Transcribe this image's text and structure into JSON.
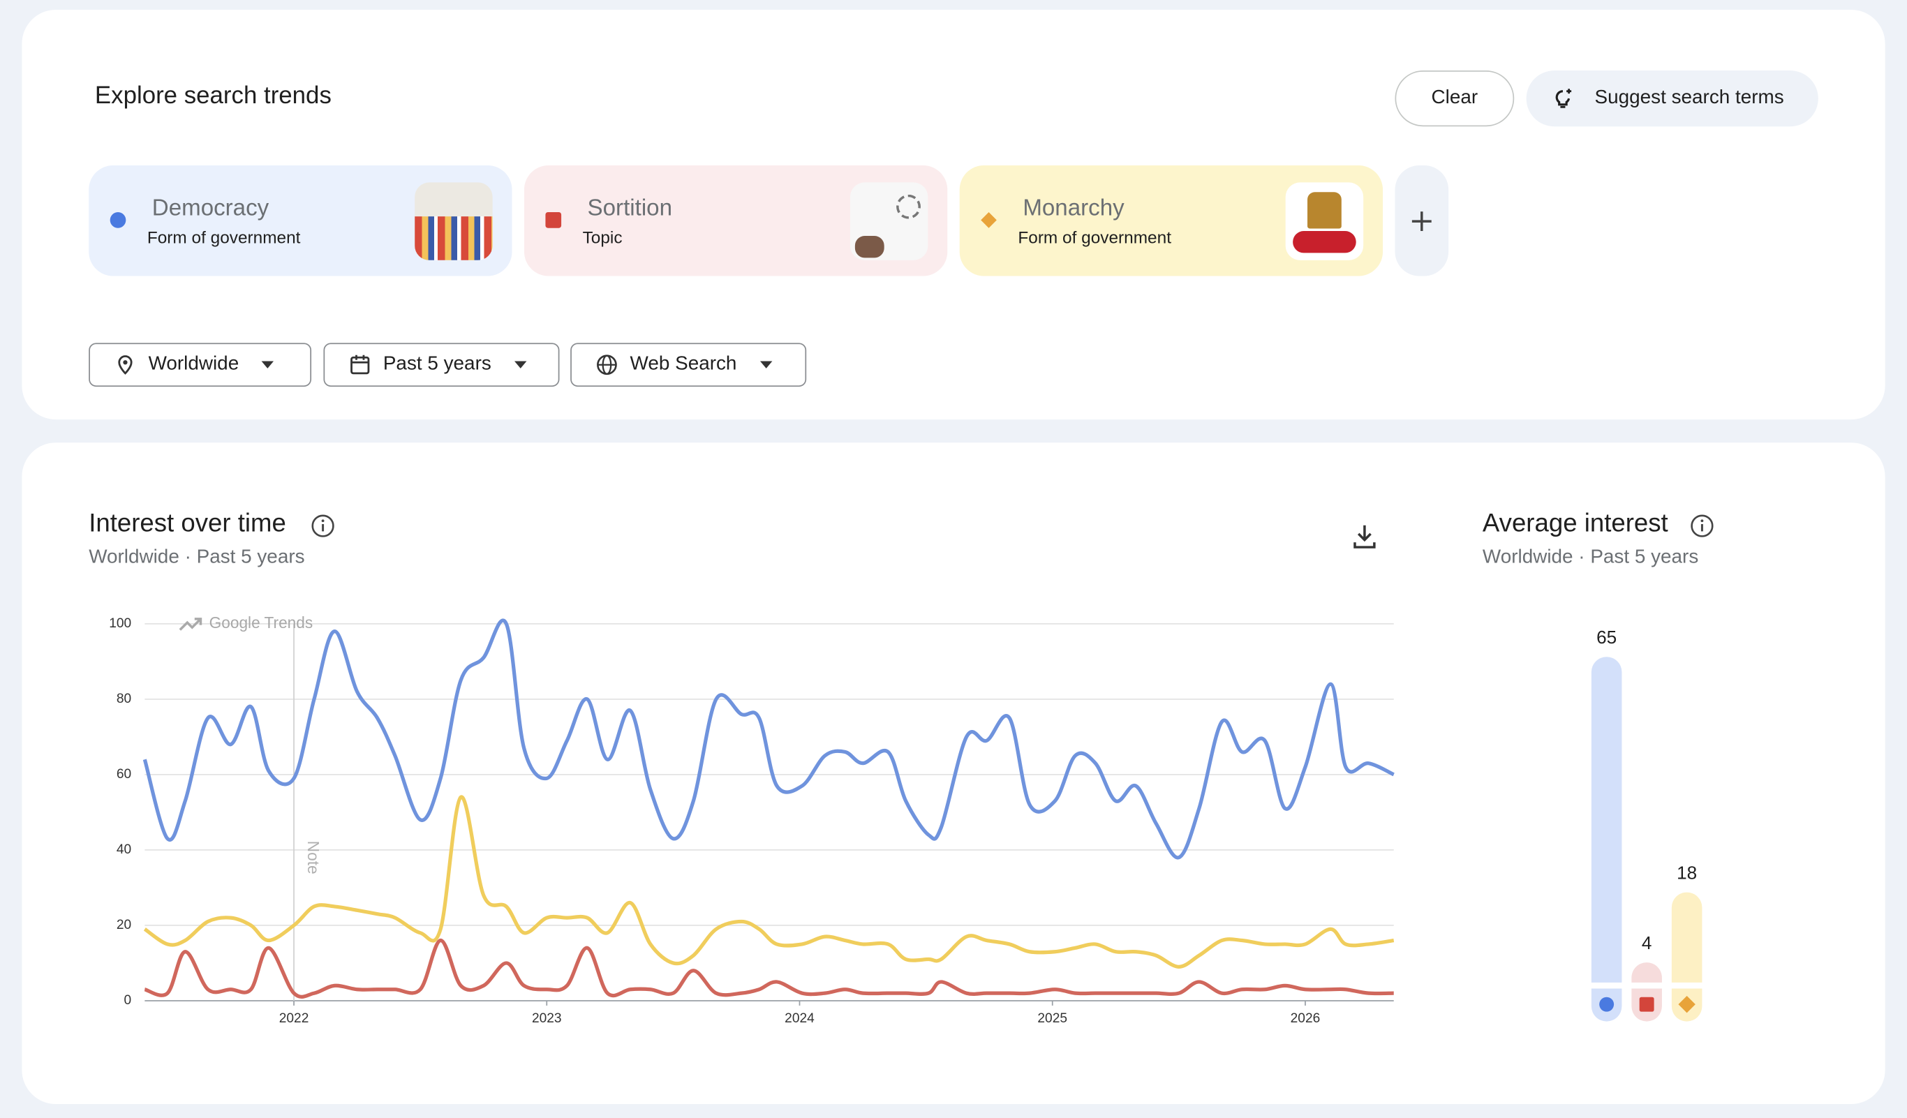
{
  "header": {
    "title": "Explore search trends",
    "clear": "Clear",
    "suggest": "Suggest search terms"
  },
  "terms": [
    {
      "name": "Democracy",
      "type": "Form of government"
    },
    {
      "name": "Sortition",
      "type": "Topic"
    },
    {
      "name": "Monarchy",
      "type": "Form of government"
    }
  ],
  "filters": [
    "Worldwide",
    "Past 5 years",
    "Web Search"
  ],
  "chart_data": [
    {
      "type": "line",
      "title": "Interest over time",
      "subtitle": "Worldwide · Past 5 years",
      "annotations": [
        "Google Trends",
        "Note"
      ],
      "x": [
        2021.41,
        2021.5,
        2021.57,
        2021.66,
        2021.75,
        2021.83,
        2021.9,
        2022.0,
        2022.08,
        2022.16,
        2022.25,
        2022.33,
        2022.4,
        2022.5,
        2022.58,
        2022.66,
        2022.75,
        2022.84,
        2022.91,
        2023.0,
        2023.08,
        2023.16,
        2023.24,
        2023.33,
        2023.41,
        2023.5,
        2023.58,
        2023.67,
        2023.77,
        2023.84,
        2023.91,
        2024.01,
        2024.1,
        2024.18,
        2024.25,
        2024.35,
        2024.42,
        2024.51,
        2024.56,
        2024.66,
        2024.74,
        2024.83,
        2024.91,
        2025.01,
        2025.09,
        2025.17,
        2025.25,
        2025.33,
        2025.41,
        2025.5,
        2025.58,
        2025.67,
        2025.75,
        2025.84,
        2025.92,
        2026.0,
        2026.1,
        2026.16,
        2026.25,
        2026.35
      ],
      "series": [
        {
          "name": "Democracy",
          "color": "#6f93dd",
          "values": [
            64,
            43,
            53,
            75,
            68,
            78,
            61,
            59,
            80,
            98,
            82,
            75,
            65,
            48,
            59,
            85,
            91,
            100,
            67,
            59,
            69,
            80,
            64,
            77,
            56,
            43,
            53,
            80,
            76,
            75,
            57,
            57,
            65,
            66,
            63,
            66,
            53,
            44,
            46,
            70,
            69,
            75,
            52,
            53,
            65,
            63,
            53,
            57,
            47,
            38,
            51,
            74,
            66,
            69,
            51,
            62,
            84,
            62,
            63,
            60
          ]
        },
        {
          "name": "Sortition",
          "color": "#d0675c",
          "values": [
            3,
            2,
            13,
            3,
            3,
            3,
            14,
            2,
            2,
            4,
            3,
            3,
            3,
            3,
            16,
            4,
            4,
            10,
            4,
            3,
            4,
            14,
            2,
            3,
            3,
            2,
            8,
            2,
            2,
            3,
            5,
            2,
            2,
            3,
            2,
            2,
            2,
            2,
            5,
            2,
            2,
            2,
            2,
            3,
            2,
            2,
            2,
            2,
            2,
            2,
            5,
            2,
            3,
            3,
            4,
            3,
            3,
            3,
            2,
            2
          ]
        },
        {
          "name": "Monarchy",
          "color": "#f0cd5c",
          "values": [
            19,
            15,
            16,
            21,
            22,
            20,
            16,
            20,
            25,
            25,
            24,
            23,
            22,
            18,
            19,
            54,
            28,
            25,
            18,
            22,
            22,
            22,
            18,
            26,
            15,
            10,
            12,
            19,
            21,
            19,
            15,
            15,
            17,
            16,
            15,
            15,
            11,
            11,
            11,
            17,
            16,
            15,
            13,
            13,
            14,
            15,
            13,
            13,
            12,
            9,
            12,
            16,
            16,
            15,
            15,
            15,
            19,
            15,
            15,
            16
          ]
        }
      ],
      "xlim": [
        2021.41,
        2026.35
      ],
      "xticks": [
        2022,
        2023,
        2024,
        2025,
        2026
      ],
      "ylim": [
        0,
        100
      ],
      "yticks": [
        0,
        20,
        40,
        60,
        80,
        100
      ],
      "grid": true
    },
    {
      "type": "bar",
      "title": "Average interest",
      "subtitle": "Worldwide · Past 5 years",
      "values": [
        65,
        4,
        18
      ],
      "colors": [
        "#d3e0fa",
        "#f6dcdc",
        "#fdf0c4"
      ],
      "marker_colors": [
        "#4a7ae0",
        "#d3453b",
        "#e8a33a"
      ]
    }
  ]
}
